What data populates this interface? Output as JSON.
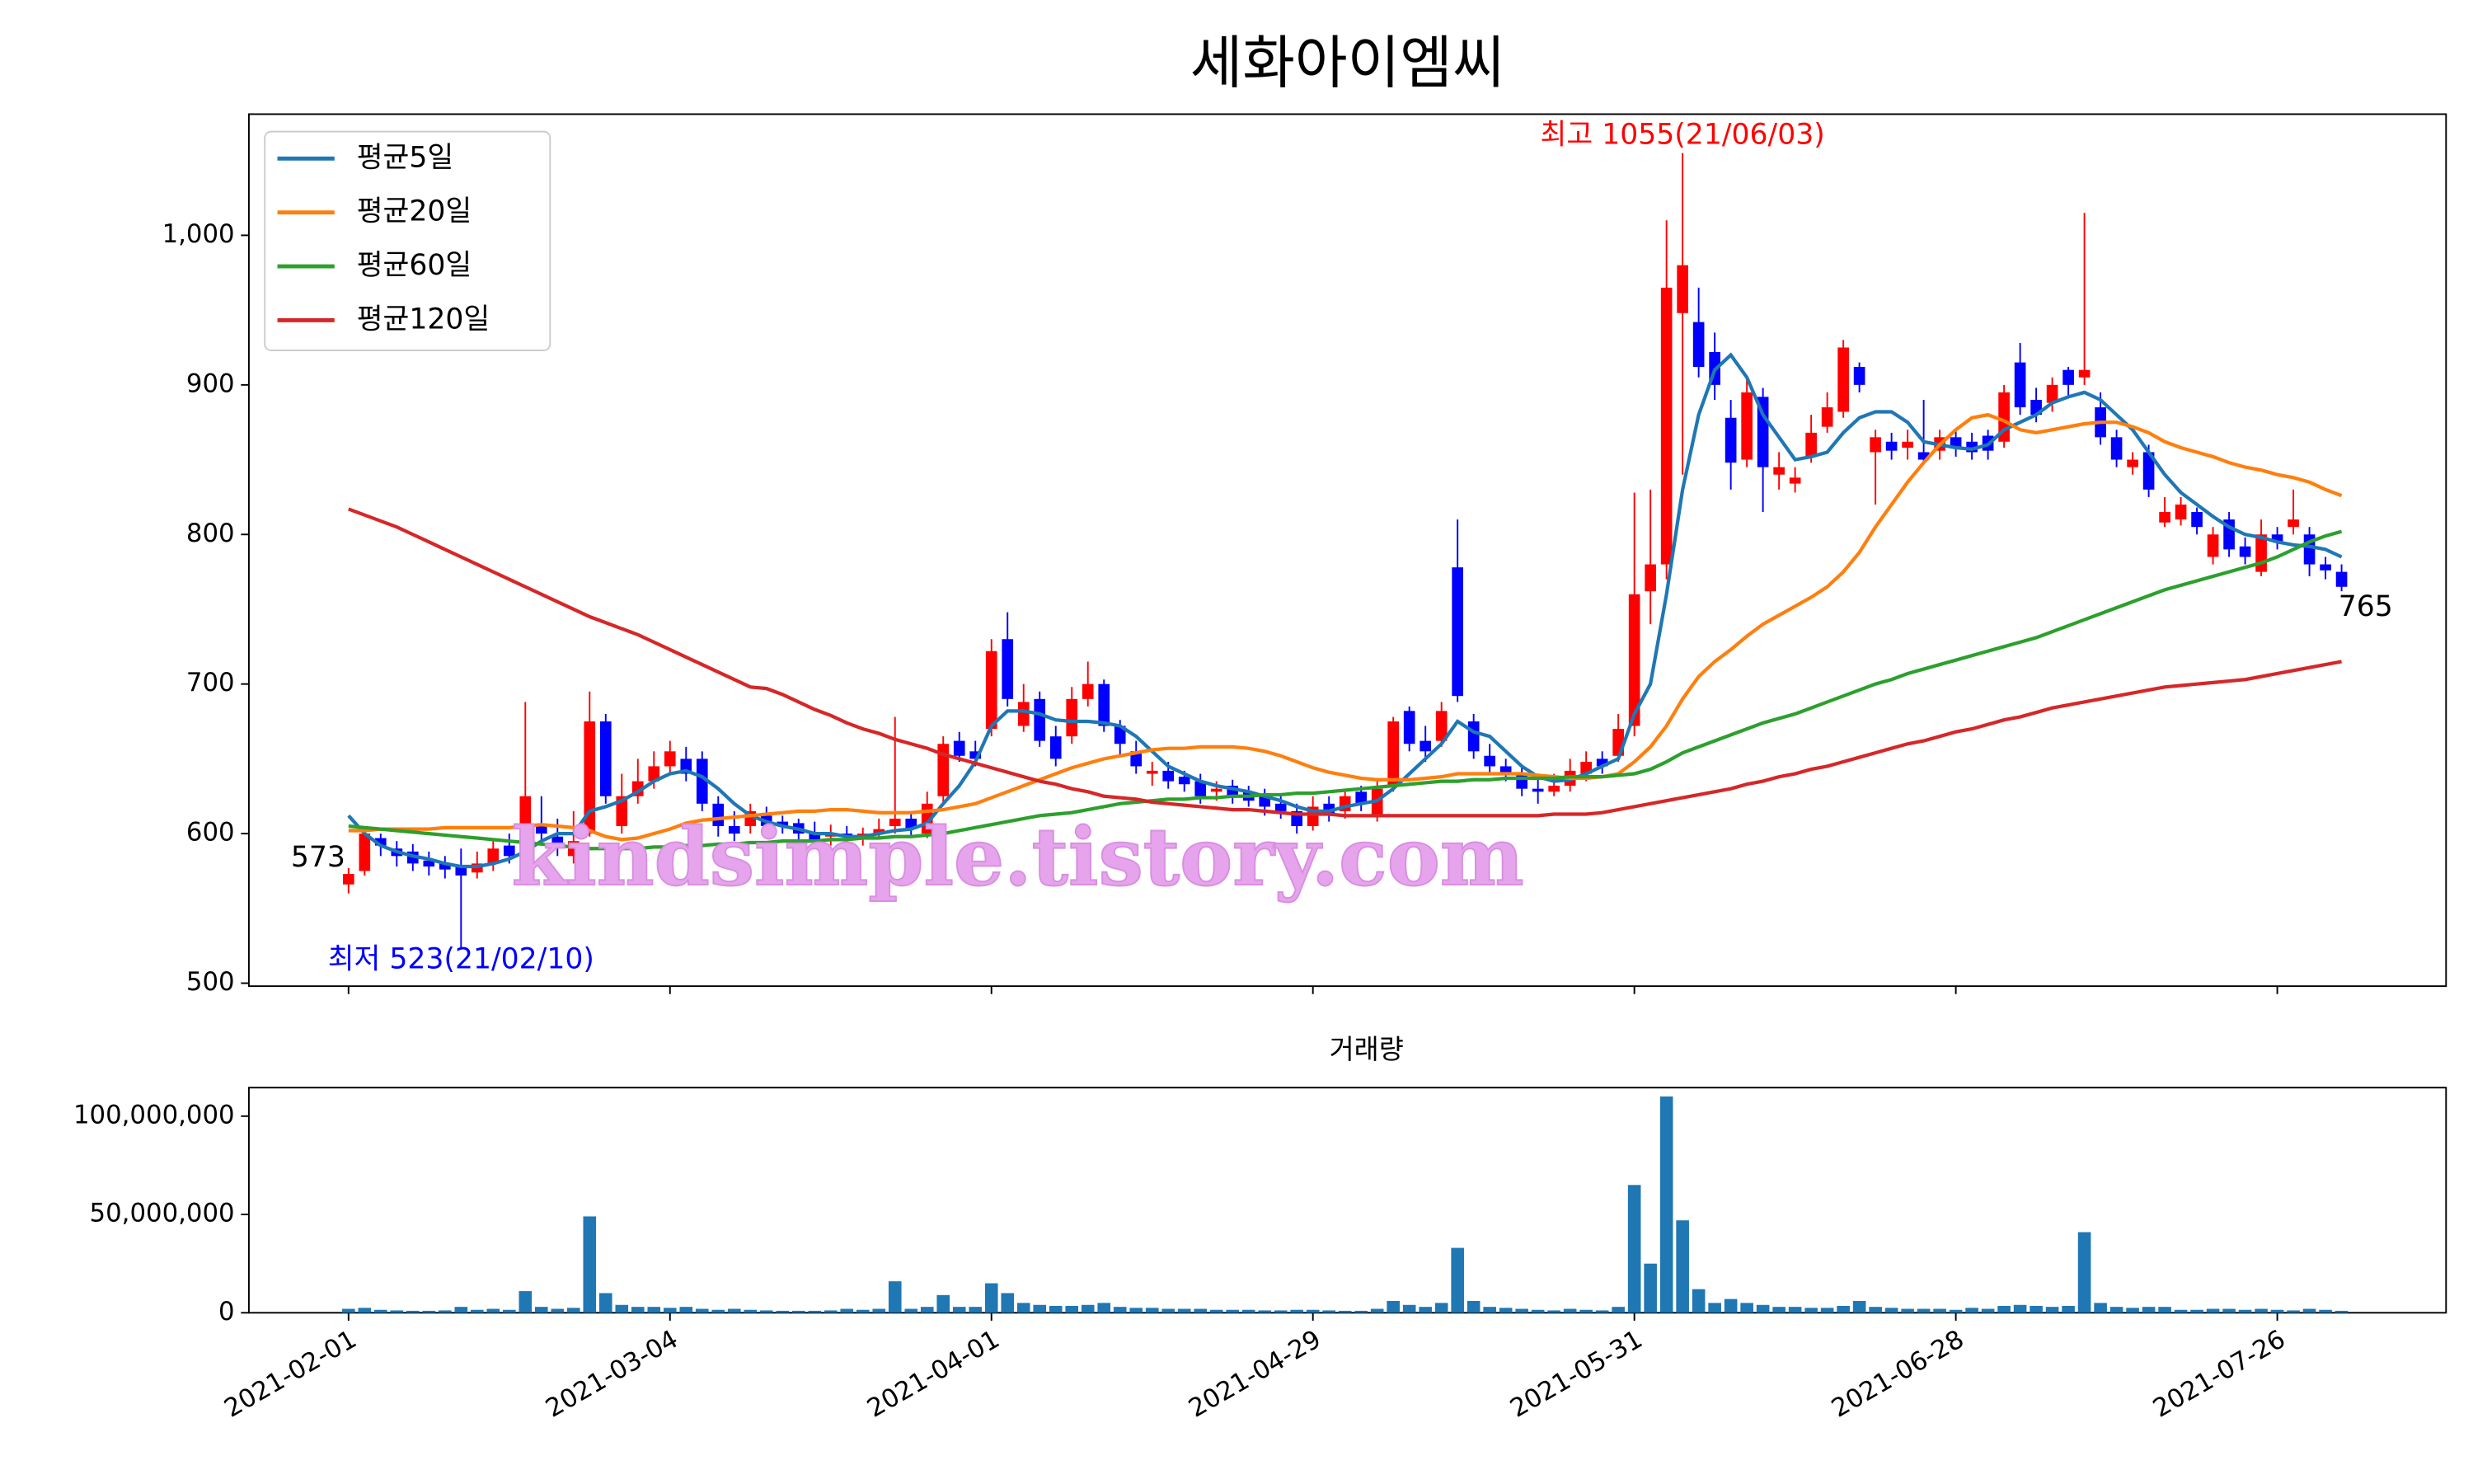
{
  "chart_data": {
    "type": "candlestick",
    "title": "세화아이엠씨",
    "categories": [
      "2021-02-01",
      null,
      null,
      null,
      null,
      null,
      null,
      null,
      null,
      null,
      null,
      null,
      null,
      null,
      null,
      null,
      null,
      null,
      null,
      null,
      "2021-03-04",
      null,
      null,
      null,
      null,
      null,
      null,
      null,
      null,
      null,
      null,
      null,
      null,
      null,
      null,
      null,
      null,
      null,
      null,
      null,
      "2021-04-01",
      null,
      null,
      null,
      null,
      null,
      null,
      null,
      null,
      null,
      null,
      null,
      null,
      null,
      null,
      null,
      null,
      null,
      null,
      null,
      "2021-04-29",
      null,
      null,
      null,
      null,
      null,
      null,
      null,
      null,
      null,
      null,
      null,
      null,
      null,
      null,
      null,
      null,
      null,
      null,
      null,
      "2021-05-31",
      null,
      null,
      null,
      null,
      null,
      null,
      null,
      null,
      null,
      null,
      null,
      null,
      null,
      null,
      null,
      null,
      null,
      null,
      null,
      "2021-06-28",
      null,
      null,
      null,
      null,
      null,
      null,
      null,
      null,
      null,
      null,
      null,
      null,
      null,
      null,
      null,
      null,
      null,
      null,
      null,
      "2021-07-26",
      null,
      null,
      null,
      null
    ],
    "open": [
      566,
      575,
      597,
      590,
      588,
      582,
      580,
      578,
      574,
      580,
      592,
      600,
      605,
      598,
      585,
      600,
      675,
      605,
      625,
      635,
      645,
      650,
      650,
      620,
      605,
      605,
      612,
      608,
      607,
      600,
      598,
      600,
      597,
      600,
      605,
      610,
      600,
      625,
      662,
      655,
      670,
      730,
      672,
      690,
      665,
      665,
      690,
      700,
      672,
      655,
      640,
      642,
      638,
      635,
      628,
      632,
      628,
      625,
      620,
      615,
      605,
      620,
      615,
      628,
      612,
      632,
      682,
      662,
      662,
      778,
      675,
      652,
      645,
      640,
      630,
      628,
      632,
      640,
      650,
      652,
      672,
      762,
      780,
      948,
      942,
      922,
      878,
      850,
      892,
      840,
      834,
      852,
      872,
      882,
      912,
      855,
      862,
      858,
      855,
      856,
      865,
      862,
      866,
      862,
      915,
      890,
      888,
      910,
      905,
      885,
      865,
      845,
      855,
      808,
      810,
      815,
      785,
      810,
      792,
      775,
      800,
      805,
      800,
      780,
      775
    ],
    "high": [
      577,
      603,
      600,
      595,
      593,
      588,
      585,
      590,
      588,
      595,
      600,
      688,
      625,
      610,
      615,
      695,
      680,
      640,
      650,
      655,
      662,
      658,
      655,
      625,
      615,
      620,
      618,
      612,
      610,
      608,
      606,
      605,
      604,
      610,
      678,
      615,
      628,
      665,
      668,
      662,
      730,
      748,
      700,
      695,
      672,
      698,
      715,
      703,
      676,
      662,
      648,
      648,
      642,
      640,
      635,
      636,
      632,
      630,
      625,
      620,
      625,
      625,
      630,
      632,
      635,
      678,
      685,
      672,
      688,
      810,
      680,
      660,
      650,
      645,
      638,
      640,
      650,
      655,
      655,
      680,
      828,
      830,
      1010,
      1055,
      965,
      935,
      890,
      905,
      898,
      855,
      845,
      880,
      895,
      930,
      915,
      870,
      868,
      870,
      890,
      870,
      870,
      868,
      870,
      900,
      928,
      898,
      905,
      912,
      1015,
      895,
      870,
      855,
      860,
      825,
      825,
      818,
      805,
      815,
      798,
      810,
      805,
      830,
      805,
      785,
      780
    ],
    "low": [
      560,
      572,
      585,
      578,
      575,
      572,
      570,
      523,
      570,
      575,
      580,
      598,
      595,
      585,
      580,
      598,
      620,
      600,
      620,
      630,
      640,
      635,
      615,
      598,
      595,
      600,
      600,
      600,
      595,
      590,
      592,
      593,
      592,
      596,
      600,
      598,
      597,
      620,
      648,
      645,
      665,
      685,
      668,
      658,
      645,
      660,
      685,
      668,
      652,
      640,
      632,
      630,
      628,
      620,
      622,
      620,
      618,
      612,
      610,
      600,
      602,
      608,
      610,
      615,
      608,
      628,
      655,
      648,
      658,
      688,
      650,
      640,
      635,
      625,
      620,
      625,
      628,
      635,
      640,
      648,
      665,
      740,
      770,
      840,
      905,
      890,
      830,
      845,
      815,
      830,
      828,
      848,
      868,
      878,
      895,
      820,
      850,
      850,
      848,
      850,
      852,
      850,
      850,
      858,
      880,
      875,
      882,
      892,
      900,
      860,
      845,
      840,
      825,
      805,
      806,
      800,
      780,
      785,
      780,
      772,
      790,
      800,
      772,
      770,
      762
    ],
    "close": [
      573,
      600,
      592,
      585,
      580,
      578,
      576,
      572,
      580,
      590,
      585,
      625,
      600,
      590,
      595,
      675,
      625,
      625,
      635,
      645,
      655,
      640,
      620,
      605,
      600,
      615,
      605,
      605,
      600,
      595,
      600,
      598,
      600,
      603,
      610,
      603,
      620,
      660,
      652,
      650,
      722,
      690,
      688,
      662,
      650,
      690,
      700,
      672,
      660,
      645,
      642,
      635,
      633,
      625,
      630,
      625,
      622,
      618,
      615,
      605,
      618,
      612,
      625,
      620,
      630,
      675,
      660,
      655,
      682,
      692,
      655,
      645,
      640,
      630,
      628,
      632,
      642,
      648,
      645,
      670,
      760,
      780,
      965,
      980,
      912,
      900,
      848,
      895,
      845,
      845,
      838,
      868,
      885,
      925,
      900,
      865,
      856,
      862,
      850,
      865,
      858,
      855,
      856,
      895,
      885,
      880,
      900,
      900,
      910,
      865,
      850,
      850,
      830,
      815,
      820,
      805,
      800,
      790,
      785,
      800,
      795,
      810,
      780,
      776,
      765
    ],
    "up_color": "#ff0000",
    "down_color": "#0000ff",
    "ylim": [
      498,
      1081
    ],
    "yticks": [
      500,
      600,
      700,
      800,
      900,
      {
        "value": 1000,
        "label": "1,000"
      }
    ],
    "legend": "upper left",
    "series": [
      {
        "name": "평균5일",
        "color": "#1f77b4",
        "values": [
          612,
          600,
          592,
          588,
          585,
          583,
          580,
          578,
          578,
          580,
          583,
          588,
          595,
          600,
          600,
          615,
          618,
          622,
          628,
          635,
          640,
          642,
          638,
          630,
          620,
          612,
          608,
          605,
          603,
          600,
          600,
          598,
          598,
          600,
          602,
          603,
          607,
          620,
          632,
          648,
          672,
          682,
          682,
          680,
          676,
          675,
          675,
          674,
          672,
          665,
          655,
          645,
          640,
          635,
          632,
          630,
          628,
          625,
          622,
          618,
          615,
          615,
          618,
          620,
          622,
          630,
          640,
          650,
          660,
          675,
          668,
          665,
          655,
          645,
          638,
          635,
          636,
          640,
          645,
          650,
          680,
          700,
          760,
          830,
          880,
          910,
          920,
          905,
          880,
          865,
          850,
          852,
          855,
          868,
          878,
          882,
          882,
          875,
          862,
          860,
          858,
          857,
          860,
          870,
          875,
          880,
          888,
          892,
          895,
          890,
          880,
          870,
          855,
          840,
          828,
          820,
          812,
          805,
          800,
          798,
          795,
          793,
          792,
          790,
          785
        ]
      },
      {
        "name": "평균20일",
        "color": "#ff7f0e",
        "values": [
          602,
          602,
          603,
          603,
          603,
          603,
          604,
          604,
          604,
          604,
          604,
          605,
          606,
          605,
          604,
          602,
          598,
          596,
          597,
          600,
          603,
          607,
          609,
          610,
          611,
          612,
          613,
          614,
          615,
          615,
          616,
          616,
          615,
          614,
          614,
          614,
          615,
          616,
          618,
          620,
          624,
          628,
          632,
          636,
          640,
          644,
          647,
          650,
          652,
          654,
          656,
          657,
          657,
          658,
          658,
          658,
          657,
          655,
          652,
          648,
          644,
          641,
          639,
          637,
          636,
          636,
          636,
          637,
          638,
          640,
          640,
          640,
          640,
          640,
          639,
          638,
          637,
          637,
          638,
          640,
          648,
          658,
          672,
          690,
          705,
          715,
          723,
          732,
          740,
          746,
          752,
          758,
          765,
          775,
          788,
          805,
          820,
          835,
          848,
          860,
          870,
          878,
          880,
          876,
          870,
          868,
          870,
          872,
          874,
          875,
          875,
          872,
          868,
          862,
          858,
          855,
          852,
          848,
          845,
          843,
          840,
          838,
          835,
          830,
          826
        ]
      },
      {
        "name": "평균60일",
        "color": "#2ca02c",
        "values": [
          605,
          604,
          603,
          602,
          601,
          600,
          599,
          598,
          597,
          596,
          595,
          594,
          593,
          592,
          591,
          590,
          590,
          590,
          590,
          591,
          591,
          592,
          592,
          593,
          593,
          594,
          594,
          595,
          595,
          595,
          596,
          596,
          597,
          597,
          598,
          598,
          599,
          600,
          602,
          604,
          606,
          608,
          610,
          612,
          613,
          614,
          616,
          618,
          620,
          621,
          622,
          623,
          623,
          624,
          624,
          625,
          625,
          626,
          626,
          627,
          627,
          628,
          629,
          630,
          631,
          632,
          633,
          634,
          635,
          635,
          636,
          636,
          637,
          637,
          637,
          637,
          638,
          638,
          638,
          639,
          640,
          643,
          648,
          654,
          658,
          662,
          666,
          670,
          674,
          677,
          680,
          684,
          688,
          692,
          696,
          700,
          703,
          707,
          710,
          713,
          716,
          719,
          722,
          725,
          728,
          731,
          735,
          739,
          743,
          747,
          751,
          755,
          759,
          763,
          766,
          769,
          772,
          775,
          778,
          781,
          785,
          790,
          795,
          799,
          802
        ]
      },
      {
        "name": "평균120일",
        "color": "#d62728",
        "values": [
          817,
          813,
          809,
          805,
          800,
          795,
          790,
          785,
          780,
          775,
          770,
          765,
          760,
          755,
          750,
          745,
          741,
          737,
          733,
          728,
          723,
          718,
          713,
          708,
          703,
          698,
          697,
          693,
          688,
          683,
          679,
          674,
          670,
          667,
          663,
          660,
          657,
          653,
          650,
          647,
          644,
          641,
          638,
          635,
          633,
          630,
          628,
          625,
          624,
          623,
          621,
          620,
          619,
          618,
          617,
          616,
          616,
          615,
          614,
          613,
          613,
          613,
          612,
          612,
          612,
          612,
          612,
          612,
          612,
          612,
          612,
          612,
          612,
          612,
          612,
          613,
          613,
          613,
          614,
          616,
          618,
          620,
          622,
          624,
          626,
          628,
          630,
          633,
          635,
          638,
          640,
          643,
          645,
          648,
          651,
          654,
          657,
          660,
          662,
          665,
          668,
          670,
          673,
          676,
          678,
          681,
          684,
          686,
          688,
          690,
          692,
          694,
          696,
          698,
          699,
          700,
          701,
          702,
          703,
          705,
          707,
          709,
          711,
          713,
          715
        ]
      }
    ],
    "annotations": [
      {
        "text": "최고 1055(21/06/03)",
        "color": "#ff0000"
      },
      {
        "text": "최저 523(21/02/10)",
        "color": "#0000ff"
      },
      {
        "text": "573",
        "color": "#000000"
      },
      {
        "text": "765",
        "color": "#000000"
      }
    ],
    "volume": {
      "title": "거래량",
      "color": "#1f77b4",
      "values": [
        2000000,
        2500000,
        1500000,
        1200000,
        1000000,
        1000000,
        1200000,
        3000000,
        1500000,
        2000000,
        1500000,
        11000000,
        3000000,
        2000000,
        2500000,
        49000000,
        10000000,
        4000000,
        3000000,
        3000000,
        2500000,
        3000000,
        2000000,
        1500000,
        2000000,
        1500000,
        1200000,
        1000000,
        1000000,
        1000000,
        1200000,
        2000000,
        1500000,
        2000000,
        16000000,
        2000000,
        3000000,
        9000000,
        3000000,
        3000000,
        15000000,
        10000000,
        5000000,
        4000000,
        3500000,
        3500000,
        4000000,
        5000000,
        3000000,
        2500000,
        2500000,
        2000000,
        2000000,
        2000000,
        1500000,
        1500000,
        1500000,
        1200000,
        1200000,
        1500000,
        1500000,
        1200000,
        1000000,
        1000000,
        2000000,
        6000000,
        4000000,
        3000000,
        5000000,
        33000000,
        6000000,
        3000000,
        2500000,
        2000000,
        1500000,
        1200000,
        2000000,
        1500000,
        1200000,
        3000000,
        65000000,
        25000000,
        110000000,
        47000000,
        12000000,
        5000000,
        7000000,
        5000000,
        4000000,
        3000000,
        3000000,
        2500000,
        2500000,
        3500000,
        6000000,
        3000000,
        2500000,
        2000000,
        2000000,
        2000000,
        1500000,
        2500000,
        2000000,
        3500000,
        4000000,
        3500000,
        3000000,
        3500000,
        41000000,
        5000000,
        3000000,
        2500000,
        3000000,
        3000000,
        1500000,
        1500000,
        2000000,
        2000000,
        1500000,
        2000000,
        1500000,
        1200000,
        2000000,
        1500000,
        1000000
      ],
      "ylim": [
        0,
        114500000
      ],
      "yticks": [
        0,
        {
          "value": 50000000,
          "label": "50,000,000"
        },
        {
          "value": 100000000,
          "label": "100,000,000"
        }
      ]
    },
    "watermark": "kindsimple.tistory.com"
  }
}
